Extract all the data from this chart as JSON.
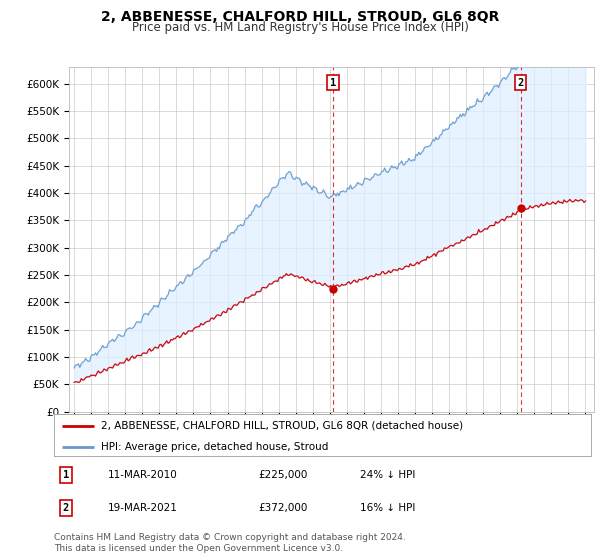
{
  "title": "2, ABBENESSE, CHALFORD HILL, STROUD, GL6 8QR",
  "subtitle": "Price paid vs. HM Land Registry's House Price Index (HPI)",
  "legend_line1": "2, ABBENESSE, CHALFORD HILL, STROUD, GL6 8QR (detached house)",
  "legend_line2": "HPI: Average price, detached house, Stroud",
  "annotation1_label": "1",
  "annotation1_date": "11-MAR-2010",
  "annotation1_price": "£225,000",
  "annotation1_note": "24% ↓ HPI",
  "annotation2_label": "2",
  "annotation2_date": "19-MAR-2021",
  "annotation2_price": "£372,000",
  "annotation2_note": "16% ↓ HPI",
  "footer": "Contains HM Land Registry data © Crown copyright and database right 2024.\nThis data is licensed under the Open Government Licence v3.0.",
  "hpi_color": "#6699cc",
  "hpi_fill_color": "#ddeeff",
  "price_color": "#cc0000",
  "vline_color": "#cc0000",
  "annotation_box_color": "#cc0000",
  "background_color": "#ffffff",
  "grid_color": "#cccccc",
  "ylim": [
    0,
    630000
  ],
  "yticks": [
    0,
    50000,
    100000,
    150000,
    200000,
    250000,
    300000,
    350000,
    400000,
    450000,
    500000,
    550000,
    600000
  ],
  "x_start_year": 1995,
  "x_end_year": 2025,
  "sale1_year": 2010.2,
  "sale1_price": 225000,
  "sale2_year": 2021.2,
  "sale2_price": 372000,
  "title_fontsize": 10,
  "subtitle_fontsize": 8.5,
  "tick_fontsize": 7.5,
  "legend_fontsize": 7.5,
  "footer_fontsize": 6.5
}
